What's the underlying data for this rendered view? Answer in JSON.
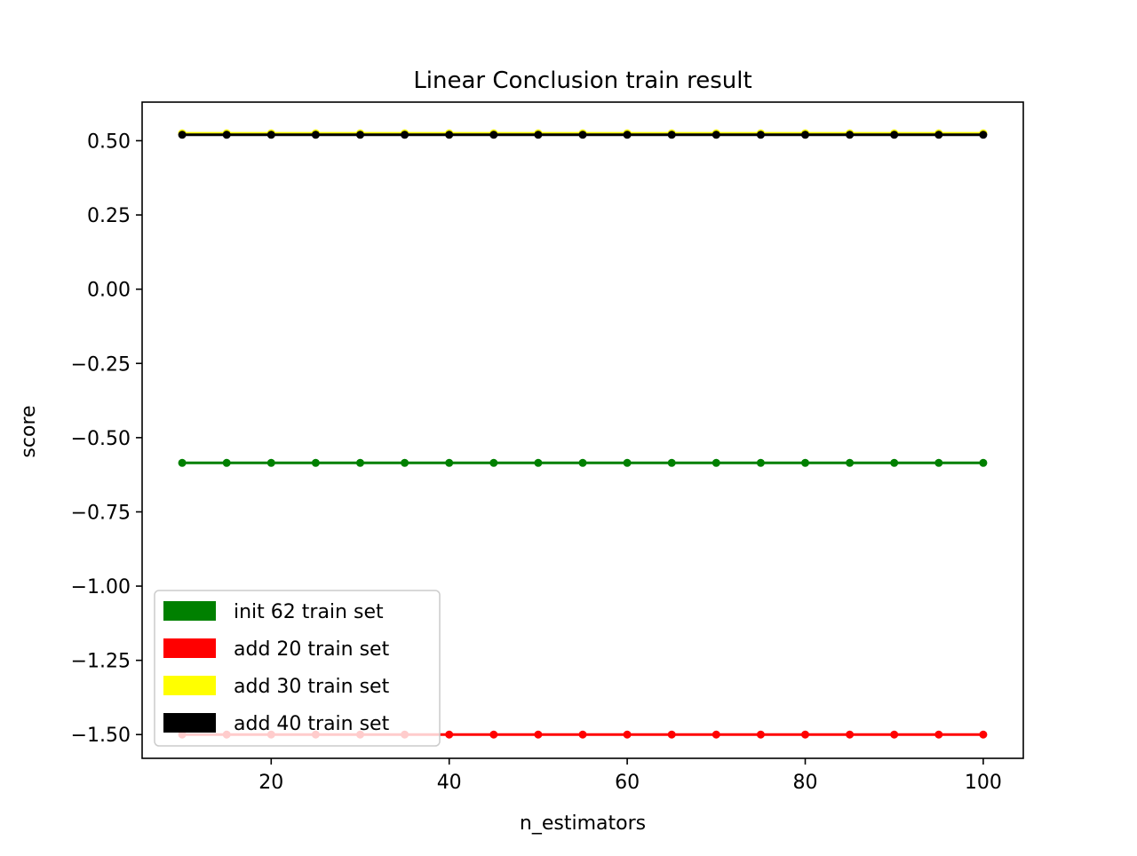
{
  "chart_data": {
    "type": "line",
    "title": "Linear Conclusion train result",
    "xlabel": "n_estimators",
    "ylabel": "score",
    "xlim": [
      5.5,
      104.5
    ],
    "ylim": [
      -1.58,
      0.63
    ],
    "grid": false,
    "legend_position": "lower-left",
    "x_ticks": [
      20,
      40,
      60,
      80,
      100
    ],
    "x_tick_labels": [
      "20",
      "40",
      "60",
      "80",
      "100"
    ],
    "y_ticks": [
      0.5,
      0.25,
      0.0,
      -0.25,
      -0.5,
      -0.75,
      -1.0,
      -1.25,
      -1.5
    ],
    "y_tick_labels": [
      "0.50",
      "0.25",
      "0.00",
      "−0.25",
      "−0.50",
      "−0.75",
      "−1.00",
      "−1.25",
      "−1.50"
    ],
    "x": [
      10,
      15,
      20,
      25,
      30,
      35,
      40,
      45,
      50,
      55,
      60,
      65,
      70,
      75,
      80,
      85,
      90,
      95,
      100
    ],
    "series": [
      {
        "name": "init 62 train set",
        "color": "#008000",
        "values": [
          -0.585,
          -0.585,
          -0.585,
          -0.585,
          -0.585,
          -0.585,
          -0.585,
          -0.585,
          -0.585,
          -0.585,
          -0.585,
          -0.585,
          -0.585,
          -0.585,
          -0.585,
          -0.585,
          -0.585,
          -0.585,
          -0.585
        ]
      },
      {
        "name": "add 20 train set",
        "color": "#ff0000",
        "values": [
          -1.5,
          -1.5,
          -1.5,
          -1.5,
          -1.5,
          -1.5,
          -1.5,
          -1.5,
          -1.5,
          -1.5,
          -1.5,
          -1.5,
          -1.5,
          -1.5,
          -1.5,
          -1.5,
          -1.5,
          -1.5,
          -1.5
        ]
      },
      {
        "name": "add 30 train set",
        "color": "#ffff00",
        "values": [
          0.525,
          0.525,
          0.525,
          0.525,
          0.525,
          0.525,
          0.525,
          0.525,
          0.525,
          0.525,
          0.525,
          0.525,
          0.525,
          0.525,
          0.525,
          0.525,
          0.525,
          0.525,
          0.525
        ]
      },
      {
        "name": "add 40 train set",
        "color": "#000000",
        "values": [
          0.52,
          0.52,
          0.52,
          0.52,
          0.52,
          0.52,
          0.52,
          0.52,
          0.52,
          0.52,
          0.52,
          0.52,
          0.52,
          0.52,
          0.52,
          0.52,
          0.52,
          0.52,
          0.52
        ]
      }
    ]
  }
}
